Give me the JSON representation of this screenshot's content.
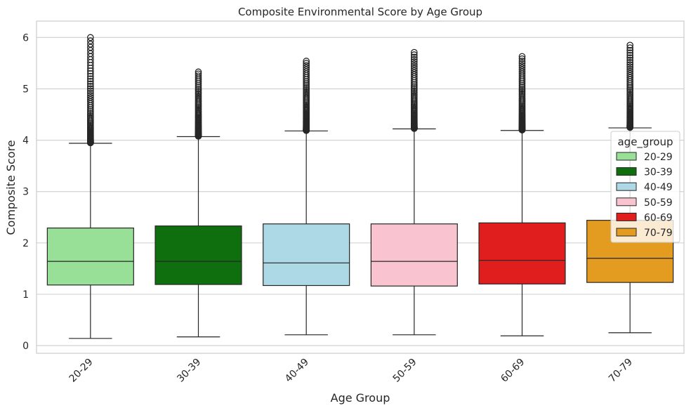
{
  "chart_data": {
    "type": "box",
    "title": "Composite Environmental Score by Age Group",
    "xlabel": "Age Group",
    "ylabel": "Composite Score",
    "ylim": [
      -0.15,
      6.32
    ],
    "yticks": [
      0,
      1,
      2,
      3,
      4,
      5,
      6
    ],
    "grid": true,
    "legend": {
      "title": "age_group",
      "placement": "right"
    },
    "categories": [
      "20-29",
      "30-39",
      "40-49",
      "50-59",
      "60-69",
      "70-79"
    ],
    "colors": [
      "#98e098",
      "#0f6f0f",
      "#add8e6",
      "#f9c4cf",
      "#e01e1e",
      "#e39b20"
    ],
    "boxes": [
      {
        "min": 0.14,
        "q1": 1.18,
        "median": 1.64,
        "q3": 2.29,
        "max": 3.94,
        "outlier_min": 3.95,
        "outlier_max": 6.0
      },
      {
        "min": 0.17,
        "q1": 1.19,
        "median": 1.64,
        "q3": 2.33,
        "max": 4.07,
        "outlier_min": 4.08,
        "outlier_max": 5.33
      },
      {
        "min": 0.21,
        "q1": 1.17,
        "median": 1.61,
        "q3": 2.37,
        "max": 4.18,
        "outlier_min": 4.19,
        "outlier_max": 5.54
      },
      {
        "min": 0.21,
        "q1": 1.16,
        "median": 1.64,
        "q3": 2.37,
        "max": 4.22,
        "outlier_min": 4.23,
        "outlier_max": 5.71
      },
      {
        "min": 0.19,
        "q1": 1.2,
        "median": 1.66,
        "q3": 2.39,
        "max": 4.19,
        "outlier_min": 4.2,
        "outlier_max": 5.63
      },
      {
        "min": 0.25,
        "q1": 1.23,
        "median": 1.7,
        "q3": 2.44,
        "max": 4.24,
        "outlier_min": 4.25,
        "outlier_max": 5.85
      }
    ]
  }
}
